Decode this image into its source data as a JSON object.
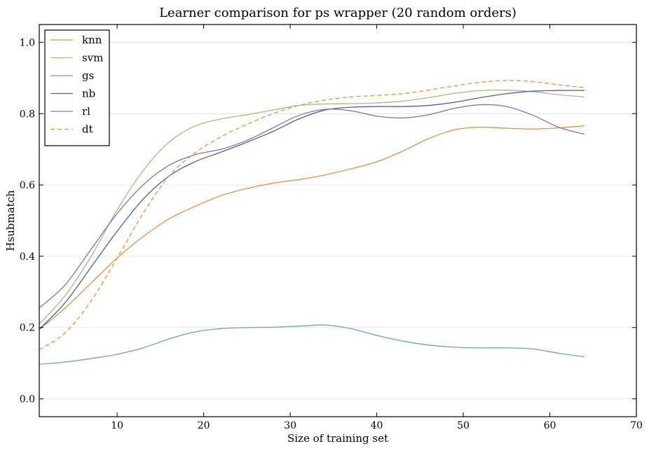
{
  "chart_data": {
    "type": "line",
    "title": "Learner comparison for ps wrapper (20 random orders)",
    "xlabel": "Size of training set",
    "ylabel": "Hsubmatch",
    "xlim": [
      1,
      70
    ],
    "ylim": [
      -0.05,
      1.05
    ],
    "xticks": [
      10,
      20,
      30,
      40,
      50,
      60,
      70
    ],
    "yticks": [
      0.0,
      0.2,
      0.4,
      0.6,
      0.8,
      1.0
    ],
    "ytick_labels": [
      "0.0",
      "0.2",
      "0.4",
      "0.6",
      "0.8",
      "1.0"
    ],
    "grid": "horizontal",
    "legend_position": "top-left",
    "series": [
      {
        "name": "knn",
        "color": "#ee8d3a",
        "dash": false,
        "x": [
          1,
          4,
          7,
          10,
          13,
          16,
          19,
          22,
          25,
          28,
          31,
          34,
          37,
          40,
          43,
          46,
          49,
          52,
          55,
          58,
          61,
          64
        ],
        "y": [
          0.195,
          0.255,
          0.325,
          0.395,
          0.455,
          0.505,
          0.54,
          0.57,
          0.59,
          0.605,
          0.615,
          0.628,
          0.645,
          0.665,
          0.695,
          0.73,
          0.755,
          0.762,
          0.759,
          0.757,
          0.76,
          0.766
        ]
      },
      {
        "name": "svm",
        "color": "#a9ba7c",
        "dash": false,
        "x": [
          1,
          4,
          7,
          10,
          13,
          16,
          19,
          22,
          25,
          28,
          31,
          34,
          37,
          40,
          43,
          46,
          49,
          52,
          55,
          58,
          61,
          64
        ],
        "y": [
          0.21,
          0.29,
          0.4,
          0.53,
          0.64,
          0.72,
          0.765,
          0.785,
          0.797,
          0.81,
          0.823,
          0.827,
          0.828,
          0.83,
          0.835,
          0.845,
          0.857,
          0.865,
          0.866,
          0.862,
          0.853,
          0.847
        ]
      },
      {
        "name": "gs",
        "color": "#6a9ec7",
        "dash": false,
        "x": [
          1,
          4,
          7,
          10,
          13,
          16,
          19,
          22,
          25,
          28,
          31,
          34,
          37,
          40,
          43,
          46,
          49,
          52,
          55,
          58,
          61,
          64
        ],
        "y": [
          0.097,
          0.103,
          0.113,
          0.125,
          0.143,
          0.168,
          0.188,
          0.197,
          0.2,
          0.201,
          0.204,
          0.207,
          0.197,
          0.178,
          0.162,
          0.151,
          0.145,
          0.143,
          0.143,
          0.14,
          0.128,
          0.118
        ]
      },
      {
        "name": "nb",
        "color": "#4a5fa9",
        "dash": false,
        "x": [
          1,
          4,
          7,
          10,
          13,
          16,
          19,
          22,
          25,
          28,
          31,
          34,
          37,
          40,
          43,
          46,
          49,
          52,
          55,
          58,
          61,
          64
        ],
        "y": [
          0.195,
          0.27,
          0.37,
          0.47,
          0.56,
          0.625,
          0.665,
          0.692,
          0.72,
          0.75,
          0.785,
          0.81,
          0.818,
          0.82,
          0.82,
          0.823,
          0.832,
          0.845,
          0.856,
          0.863,
          0.865,
          0.865
        ]
      },
      {
        "name": "rl",
        "color": "#8474ab",
        "dash": false,
        "x": [
          1,
          4,
          7,
          10,
          13,
          16,
          19,
          22,
          25,
          28,
          31,
          34,
          37,
          40,
          43,
          46,
          49,
          52,
          55,
          58,
          61,
          64
        ],
        "y": [
          0.255,
          0.32,
          0.42,
          0.52,
          0.6,
          0.655,
          0.685,
          0.7,
          0.725,
          0.76,
          0.795,
          0.812,
          0.808,
          0.793,
          0.788,
          0.797,
          0.815,
          0.825,
          0.82,
          0.796,
          0.762,
          0.742
        ]
      },
      {
        "name": "dt",
        "color": "#ee8d3a",
        "dash": true,
        "x": [
          1,
          4,
          7,
          10,
          13,
          16,
          19,
          22,
          25,
          28,
          31,
          34,
          37,
          40,
          43,
          46,
          49,
          52,
          55,
          58,
          61,
          64
        ],
        "y": [
          0.138,
          0.185,
          0.275,
          0.395,
          0.52,
          0.625,
          0.69,
          0.735,
          0.77,
          0.8,
          0.823,
          0.838,
          0.847,
          0.851,
          0.856,
          0.866,
          0.878,
          0.888,
          0.893,
          0.89,
          0.881,
          0.873
        ]
      }
    ]
  }
}
